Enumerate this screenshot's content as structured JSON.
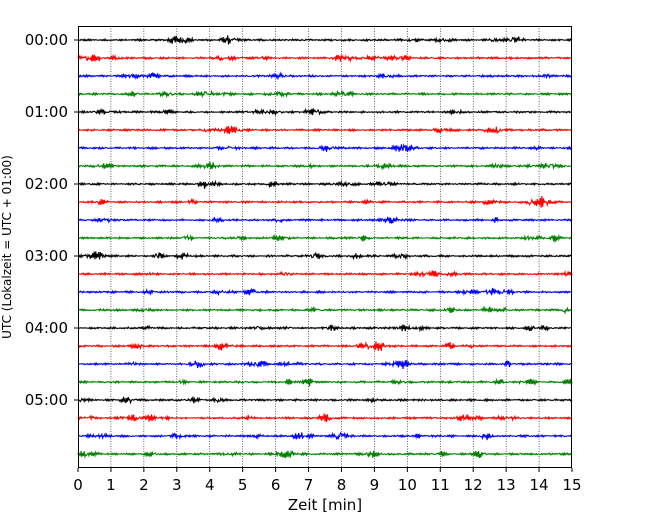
{
  "chart_data": {
    "type": "line",
    "title": "",
    "xlabel": "Zeit  [min]",
    "ylabel": "UTC (Lokalzeit = UTC + 01:00)",
    "xlim": [
      0,
      15
    ],
    "x_ticks": [
      0,
      1,
      2,
      3,
      4,
      5,
      6,
      7,
      8,
      9,
      10,
      11,
      12,
      13,
      14,
      15
    ],
    "x_tick_labels": [
      "0",
      "1",
      "2",
      "3",
      "4",
      "5",
      "6",
      "7",
      "8",
      "9",
      "10",
      "11",
      "12",
      "13",
      "14",
      "15"
    ],
    "y_tick_labels": [
      "00:00",
      "01:00",
      "02:00",
      "03:00",
      "04:00",
      "05:00"
    ],
    "y_tick_trace_index": [
      0,
      4,
      8,
      12,
      16,
      20
    ],
    "trace_count": 24,
    "trace_minutes": 15,
    "trace_colors": [
      "#000000",
      "#ff0000",
      "#0000ff",
      "#008000"
    ],
    "grid": "vertical dotted at each minute",
    "series": [
      {
        "name": "00:00",
        "color": "#000000"
      },
      {
        "name": "00:15",
        "color": "#ff0000"
      },
      {
        "name": "00:30",
        "color": "#0000ff"
      },
      {
        "name": "00:45",
        "color": "#008000"
      },
      {
        "name": "01:00",
        "color": "#000000"
      },
      {
        "name": "01:15",
        "color": "#ff0000"
      },
      {
        "name": "01:30",
        "color": "#0000ff"
      },
      {
        "name": "01:45",
        "color": "#008000"
      },
      {
        "name": "02:00",
        "color": "#000000"
      },
      {
        "name": "02:15",
        "color": "#ff0000"
      },
      {
        "name": "02:30",
        "color": "#0000ff"
      },
      {
        "name": "02:45",
        "color": "#008000"
      },
      {
        "name": "03:00",
        "color": "#000000"
      },
      {
        "name": "03:15",
        "color": "#ff0000"
      },
      {
        "name": "03:30",
        "color": "#0000ff"
      },
      {
        "name": "03:45",
        "color": "#008000"
      },
      {
        "name": "04:00",
        "color": "#000000"
      },
      {
        "name": "04:15",
        "color": "#ff0000"
      },
      {
        "name": "04:30",
        "color": "#0000ff"
      },
      {
        "name": "04:45",
        "color": "#008000"
      },
      {
        "name": "05:00",
        "color": "#000000"
      },
      {
        "name": "05:15",
        "color": "#ff0000"
      },
      {
        "name": "05:30",
        "color": "#0000ff"
      },
      {
        "name": "05:45",
        "color": "#008000"
      }
    ]
  }
}
